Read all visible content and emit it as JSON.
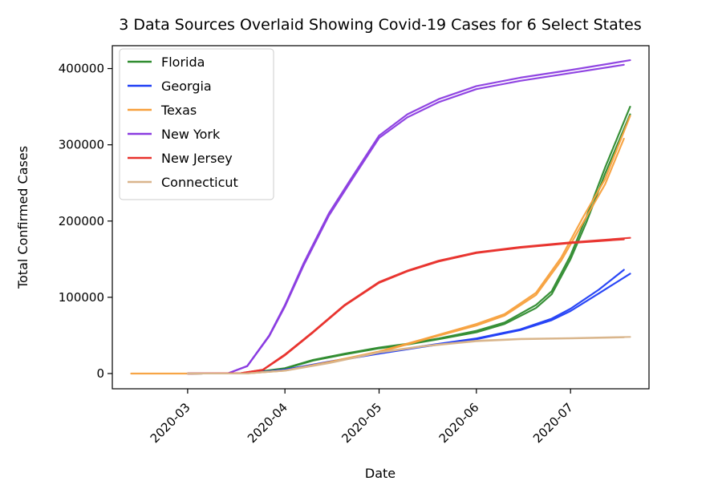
{
  "chart_data": {
    "type": "line",
    "title": "3 Data Sources Overlaid Showing Covid-19 Cases for 6 Select States",
    "xlabel": "Date",
    "ylabel": "Total Confirmed Cases",
    "x_ticks": [
      "2020-03",
      "2020-04",
      "2020-05",
      "2020-06",
      "2020-07"
    ],
    "y_ticks": [
      0,
      100000,
      200000,
      300000,
      400000
    ],
    "ylim": [
      -20000,
      430000
    ],
    "xlim": [
      "2020-02-06",
      "2020-07-26"
    ],
    "grid": false,
    "legend": "top-left",
    "series": [
      {
        "name": "Florida",
        "color": "#2e8b2e",
        "lines": [
          [
            [
              "2020-03-01",
              0
            ],
            [
              "2020-03-20",
              500
            ],
            [
              "2020-04-01",
              7000
            ],
            [
              "2020-04-10",
              18000
            ],
            [
              "2020-04-20",
              26000
            ],
            [
              "2020-05-01",
              34000
            ],
            [
              "2020-05-10",
              39000
            ],
            [
              "2020-05-20",
              46000
            ],
            [
              "2020-06-01",
              56000
            ],
            [
              "2020-06-10",
              67000
            ],
            [
              "2020-06-20",
              90000
            ],
            [
              "2020-06-25",
              108000
            ],
            [
              "2020-07-01",
              155000
            ],
            [
              "2020-07-06",
              205000
            ],
            [
              "2020-07-12",
              270000
            ],
            [
              "2020-07-20",
              350000
            ]
          ],
          [
            [
              "2020-03-01",
              0
            ],
            [
              "2020-03-20",
              450
            ],
            [
              "2020-04-01",
              6500
            ],
            [
              "2020-04-10",
              17000
            ],
            [
              "2020-04-20",
              25000
            ],
            [
              "2020-05-01",
              33000
            ],
            [
              "2020-05-10",
              38000
            ],
            [
              "2020-05-20",
              45000
            ],
            [
              "2020-06-01",
              54000
            ],
            [
              "2020-06-10",
              65000
            ],
            [
              "2020-06-20",
              86000
            ],
            [
              "2020-06-25",
              104000
            ],
            [
              "2020-07-01",
              150000
            ],
            [
              "2020-07-06",
              198000
            ],
            [
              "2020-07-12",
              262000
            ],
            [
              "2020-07-20",
              340000
            ]
          ]
        ]
      },
      {
        "name": "Georgia",
        "color": "#1f3df5",
        "lines": [
          [
            [
              "2020-03-01",
              0
            ],
            [
              "2020-03-20",
              300
            ],
            [
              "2020-04-01",
              5000
            ],
            [
              "2020-04-15",
              15000
            ],
            [
              "2020-05-01",
              26000
            ],
            [
              "2020-05-15",
              35000
            ],
            [
              "2020-06-01",
              45000
            ],
            [
              "2020-06-15",
              57000
            ],
            [
              "2020-06-25",
              70000
            ],
            [
              "2020-07-01",
              82000
            ],
            [
              "2020-07-10",
              105000
            ],
            [
              "2020-07-20",
              131000
            ]
          ],
          [
            [
              "2020-03-01",
              0
            ],
            [
              "2020-03-20",
              300
            ],
            [
              "2020-04-01",
              5000
            ],
            [
              "2020-04-15",
              15500
            ],
            [
              "2020-05-01",
              27000
            ],
            [
              "2020-05-15",
              36000
            ],
            [
              "2020-06-01",
              46000
            ],
            [
              "2020-06-15",
              58000
            ],
            [
              "2020-06-25",
              72000
            ],
            [
              "2020-07-01",
              85000
            ],
            [
              "2020-07-10",
              110000
            ],
            [
              "2020-07-18",
              136000
            ]
          ]
        ]
      },
      {
        "name": "Texas",
        "color": "#f7a03c",
        "lines": [
          [
            [
              "2020-02-12",
              0
            ],
            [
              "2020-03-01",
              0
            ],
            [
              "2020-03-20",
              400
            ],
            [
              "2020-04-01",
              4000
            ],
            [
              "2020-04-15",
              15000
            ],
            [
              "2020-05-01",
              29000
            ],
            [
              "2020-05-15",
              45000
            ],
            [
              "2020-06-01",
              65000
            ],
            [
              "2020-06-10",
              78000
            ],
            [
              "2020-06-20",
              106000
            ],
            [
              "2020-06-28",
              152000
            ],
            [
              "2020-07-05",
              205000
            ],
            [
              "2020-07-12",
              255000
            ],
            [
              "2020-07-20",
              338000
            ]
          ],
          [
            [
              "2020-03-01",
              0
            ],
            [
              "2020-03-20",
              380
            ],
            [
              "2020-04-01",
              3800
            ],
            [
              "2020-04-15",
              14500
            ],
            [
              "2020-05-01",
              28000
            ],
            [
              "2020-05-15",
              44000
            ],
            [
              "2020-06-01",
              63000
            ],
            [
              "2020-06-10",
              76000
            ],
            [
              "2020-06-20",
              103000
            ],
            [
              "2020-06-28",
              148000
            ],
            [
              "2020-07-05",
              198000
            ],
            [
              "2020-07-12",
              248000
            ],
            [
              "2020-07-18",
              308000
            ]
          ]
        ]
      },
      {
        "name": "New York",
        "color": "#8a3be0",
        "lines": [
          [
            [
              "2020-03-01",
              0
            ],
            [
              "2020-03-14",
              500
            ],
            [
              "2020-03-20",
              10000
            ],
            [
              "2020-03-27",
              50000
            ],
            [
              "2020-04-01",
              90000
            ],
            [
              "2020-04-07",
              145000
            ],
            [
              "2020-04-15",
              210000
            ],
            [
              "2020-04-22",
              255000
            ],
            [
              "2020-05-01",
              312000
            ],
            [
              "2020-05-10",
              340000
            ],
            [
              "2020-05-20",
              360000
            ],
            [
              "2020-06-01",
              377000
            ],
            [
              "2020-06-15",
              388000
            ],
            [
              "2020-07-01",
              398000
            ],
            [
              "2020-07-20",
              411000
            ]
          ],
          [
            [
              "2020-03-01",
              0
            ],
            [
              "2020-03-14",
              480
            ],
            [
              "2020-03-20",
              9500
            ],
            [
              "2020-03-27",
              49000
            ],
            [
              "2020-04-01",
              88000
            ],
            [
              "2020-04-07",
              142000
            ],
            [
              "2020-04-15",
              207000
            ],
            [
              "2020-04-22",
              252000
            ],
            [
              "2020-05-01",
              309000
            ],
            [
              "2020-05-10",
              336000
            ],
            [
              "2020-05-20",
              356000
            ],
            [
              "2020-06-01",
              373000
            ],
            [
              "2020-06-15",
              384000
            ],
            [
              "2020-07-01",
              394000
            ],
            [
              "2020-07-18",
              405000
            ]
          ]
        ]
      },
      {
        "name": "New Jersey",
        "color": "#e8322c",
        "lines": [
          [
            [
              "2020-03-01",
              0
            ],
            [
              "2020-03-18",
              500
            ],
            [
              "2020-03-25",
              5000
            ],
            [
              "2020-04-01",
              25000
            ],
            [
              "2020-04-10",
              55000
            ],
            [
              "2020-04-20",
              90000
            ],
            [
              "2020-05-01",
              120000
            ],
            [
              "2020-05-10",
              135000
            ],
            [
              "2020-05-20",
              148000
            ],
            [
              "2020-06-01",
              159000
            ],
            [
              "2020-06-15",
              166000
            ],
            [
              "2020-07-01",
              172000
            ],
            [
              "2020-07-20",
              178000
            ]
          ],
          [
            [
              "2020-03-01",
              0
            ],
            [
              "2020-03-18",
              480
            ],
            [
              "2020-03-25",
              4800
            ],
            [
              "2020-04-01",
              24000
            ],
            [
              "2020-04-10",
              54000
            ],
            [
              "2020-04-20",
              89000
            ],
            [
              "2020-05-01",
              119000
            ],
            [
              "2020-05-10",
              134000
            ],
            [
              "2020-05-20",
              147000
            ],
            [
              "2020-06-01",
              158000
            ],
            [
              "2020-06-15",
              165000
            ],
            [
              "2020-07-01",
              171000
            ],
            [
              "2020-07-18",
              176000
            ]
          ]
        ]
      },
      {
        "name": "Connecticut",
        "color": "#d9b58c",
        "lines": [
          [
            [
              "2020-03-01",
              0
            ],
            [
              "2020-03-20",
              200
            ],
            [
              "2020-04-01",
              4000
            ],
            [
              "2020-04-15",
              14000
            ],
            [
              "2020-05-01",
              28000
            ],
            [
              "2020-05-15",
              36000
            ],
            [
              "2020-06-01",
              43000
            ],
            [
              "2020-06-15",
              45500
            ],
            [
              "2020-07-01",
              46500
            ],
            [
              "2020-07-20",
              48000
            ]
          ],
          [
            [
              "2020-03-01",
              0
            ],
            [
              "2020-03-20",
              190
            ],
            [
              "2020-04-01",
              3800
            ],
            [
              "2020-04-15",
              13500
            ],
            [
              "2020-05-01",
              27500
            ],
            [
              "2020-05-15",
              35500
            ],
            [
              "2020-06-01",
              42500
            ],
            [
              "2020-06-15",
              45000
            ],
            [
              "2020-07-01",
              46000
            ],
            [
              "2020-07-18",
              47500
            ]
          ]
        ]
      }
    ]
  }
}
